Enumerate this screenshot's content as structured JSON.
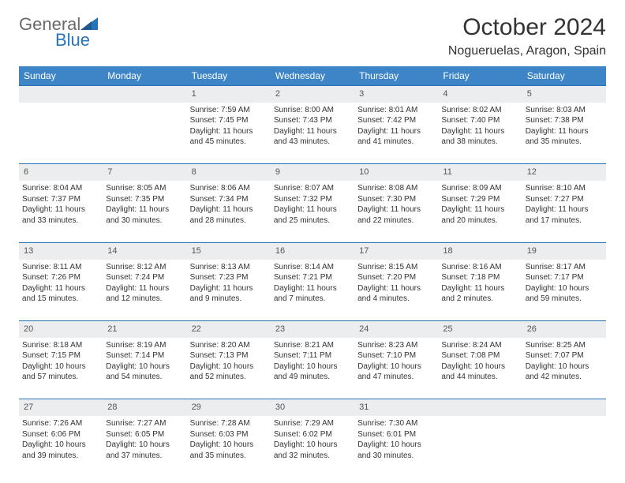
{
  "brand": {
    "text1": "General",
    "text2": "Blue"
  },
  "title": "October 2024",
  "location": "Nogueruelas, Aragon, Spain",
  "colors": {
    "header_bg": "#3d85c6",
    "header_text": "#ffffff",
    "daynum_bg": "#ecedee",
    "row_border": "#2773b8",
    "brand_gray": "#6a6a6a",
    "brand_blue": "#2773b8"
  },
  "day_headers": [
    "Sunday",
    "Monday",
    "Tuesday",
    "Wednesday",
    "Thursday",
    "Friday",
    "Saturday"
  ],
  "weeks": [
    {
      "nums": [
        "",
        "",
        "1",
        "2",
        "3",
        "4",
        "5"
      ],
      "cells": [
        null,
        null,
        {
          "sunrise": "Sunrise: 7:59 AM",
          "sunset": "Sunset: 7:45 PM",
          "d1": "Daylight: 11 hours",
          "d2": "and 45 minutes."
        },
        {
          "sunrise": "Sunrise: 8:00 AM",
          "sunset": "Sunset: 7:43 PM",
          "d1": "Daylight: 11 hours",
          "d2": "and 43 minutes."
        },
        {
          "sunrise": "Sunrise: 8:01 AM",
          "sunset": "Sunset: 7:42 PM",
          "d1": "Daylight: 11 hours",
          "d2": "and 41 minutes."
        },
        {
          "sunrise": "Sunrise: 8:02 AM",
          "sunset": "Sunset: 7:40 PM",
          "d1": "Daylight: 11 hours",
          "d2": "and 38 minutes."
        },
        {
          "sunrise": "Sunrise: 8:03 AM",
          "sunset": "Sunset: 7:38 PM",
          "d1": "Daylight: 11 hours",
          "d2": "and 35 minutes."
        }
      ]
    },
    {
      "nums": [
        "6",
        "7",
        "8",
        "9",
        "10",
        "11",
        "12"
      ],
      "cells": [
        {
          "sunrise": "Sunrise: 8:04 AM",
          "sunset": "Sunset: 7:37 PM",
          "d1": "Daylight: 11 hours",
          "d2": "and 33 minutes."
        },
        {
          "sunrise": "Sunrise: 8:05 AM",
          "sunset": "Sunset: 7:35 PM",
          "d1": "Daylight: 11 hours",
          "d2": "and 30 minutes."
        },
        {
          "sunrise": "Sunrise: 8:06 AM",
          "sunset": "Sunset: 7:34 PM",
          "d1": "Daylight: 11 hours",
          "d2": "and 28 minutes."
        },
        {
          "sunrise": "Sunrise: 8:07 AM",
          "sunset": "Sunset: 7:32 PM",
          "d1": "Daylight: 11 hours",
          "d2": "and 25 minutes."
        },
        {
          "sunrise": "Sunrise: 8:08 AM",
          "sunset": "Sunset: 7:30 PM",
          "d1": "Daylight: 11 hours",
          "d2": "and 22 minutes."
        },
        {
          "sunrise": "Sunrise: 8:09 AM",
          "sunset": "Sunset: 7:29 PM",
          "d1": "Daylight: 11 hours",
          "d2": "and 20 minutes."
        },
        {
          "sunrise": "Sunrise: 8:10 AM",
          "sunset": "Sunset: 7:27 PM",
          "d1": "Daylight: 11 hours",
          "d2": "and 17 minutes."
        }
      ]
    },
    {
      "nums": [
        "13",
        "14",
        "15",
        "16",
        "17",
        "18",
        "19"
      ],
      "cells": [
        {
          "sunrise": "Sunrise: 8:11 AM",
          "sunset": "Sunset: 7:26 PM",
          "d1": "Daylight: 11 hours",
          "d2": "and 15 minutes."
        },
        {
          "sunrise": "Sunrise: 8:12 AM",
          "sunset": "Sunset: 7:24 PM",
          "d1": "Daylight: 11 hours",
          "d2": "and 12 minutes."
        },
        {
          "sunrise": "Sunrise: 8:13 AM",
          "sunset": "Sunset: 7:23 PM",
          "d1": "Daylight: 11 hours",
          "d2": "and 9 minutes."
        },
        {
          "sunrise": "Sunrise: 8:14 AM",
          "sunset": "Sunset: 7:21 PM",
          "d1": "Daylight: 11 hours",
          "d2": "and 7 minutes."
        },
        {
          "sunrise": "Sunrise: 8:15 AM",
          "sunset": "Sunset: 7:20 PM",
          "d1": "Daylight: 11 hours",
          "d2": "and 4 minutes."
        },
        {
          "sunrise": "Sunrise: 8:16 AM",
          "sunset": "Sunset: 7:18 PM",
          "d1": "Daylight: 11 hours",
          "d2": "and 2 minutes."
        },
        {
          "sunrise": "Sunrise: 8:17 AM",
          "sunset": "Sunset: 7:17 PM",
          "d1": "Daylight: 10 hours",
          "d2": "and 59 minutes."
        }
      ]
    },
    {
      "nums": [
        "20",
        "21",
        "22",
        "23",
        "24",
        "25",
        "26"
      ],
      "cells": [
        {
          "sunrise": "Sunrise: 8:18 AM",
          "sunset": "Sunset: 7:15 PM",
          "d1": "Daylight: 10 hours",
          "d2": "and 57 minutes."
        },
        {
          "sunrise": "Sunrise: 8:19 AM",
          "sunset": "Sunset: 7:14 PM",
          "d1": "Daylight: 10 hours",
          "d2": "and 54 minutes."
        },
        {
          "sunrise": "Sunrise: 8:20 AM",
          "sunset": "Sunset: 7:13 PM",
          "d1": "Daylight: 10 hours",
          "d2": "and 52 minutes."
        },
        {
          "sunrise": "Sunrise: 8:21 AM",
          "sunset": "Sunset: 7:11 PM",
          "d1": "Daylight: 10 hours",
          "d2": "and 49 minutes."
        },
        {
          "sunrise": "Sunrise: 8:23 AM",
          "sunset": "Sunset: 7:10 PM",
          "d1": "Daylight: 10 hours",
          "d2": "and 47 minutes."
        },
        {
          "sunrise": "Sunrise: 8:24 AM",
          "sunset": "Sunset: 7:08 PM",
          "d1": "Daylight: 10 hours",
          "d2": "and 44 minutes."
        },
        {
          "sunrise": "Sunrise: 8:25 AM",
          "sunset": "Sunset: 7:07 PM",
          "d1": "Daylight: 10 hours",
          "d2": "and 42 minutes."
        }
      ]
    },
    {
      "nums": [
        "27",
        "28",
        "29",
        "30",
        "31",
        "",
        ""
      ],
      "cells": [
        {
          "sunrise": "Sunrise: 7:26 AM",
          "sunset": "Sunset: 6:06 PM",
          "d1": "Daylight: 10 hours",
          "d2": "and 39 minutes."
        },
        {
          "sunrise": "Sunrise: 7:27 AM",
          "sunset": "Sunset: 6:05 PM",
          "d1": "Daylight: 10 hours",
          "d2": "and 37 minutes."
        },
        {
          "sunrise": "Sunrise: 7:28 AM",
          "sunset": "Sunset: 6:03 PM",
          "d1": "Daylight: 10 hours",
          "d2": "and 35 minutes."
        },
        {
          "sunrise": "Sunrise: 7:29 AM",
          "sunset": "Sunset: 6:02 PM",
          "d1": "Daylight: 10 hours",
          "d2": "and 32 minutes."
        },
        {
          "sunrise": "Sunrise: 7:30 AM",
          "sunset": "Sunset: 6:01 PM",
          "d1": "Daylight: 10 hours",
          "d2": "and 30 minutes."
        },
        null,
        null
      ]
    }
  ]
}
